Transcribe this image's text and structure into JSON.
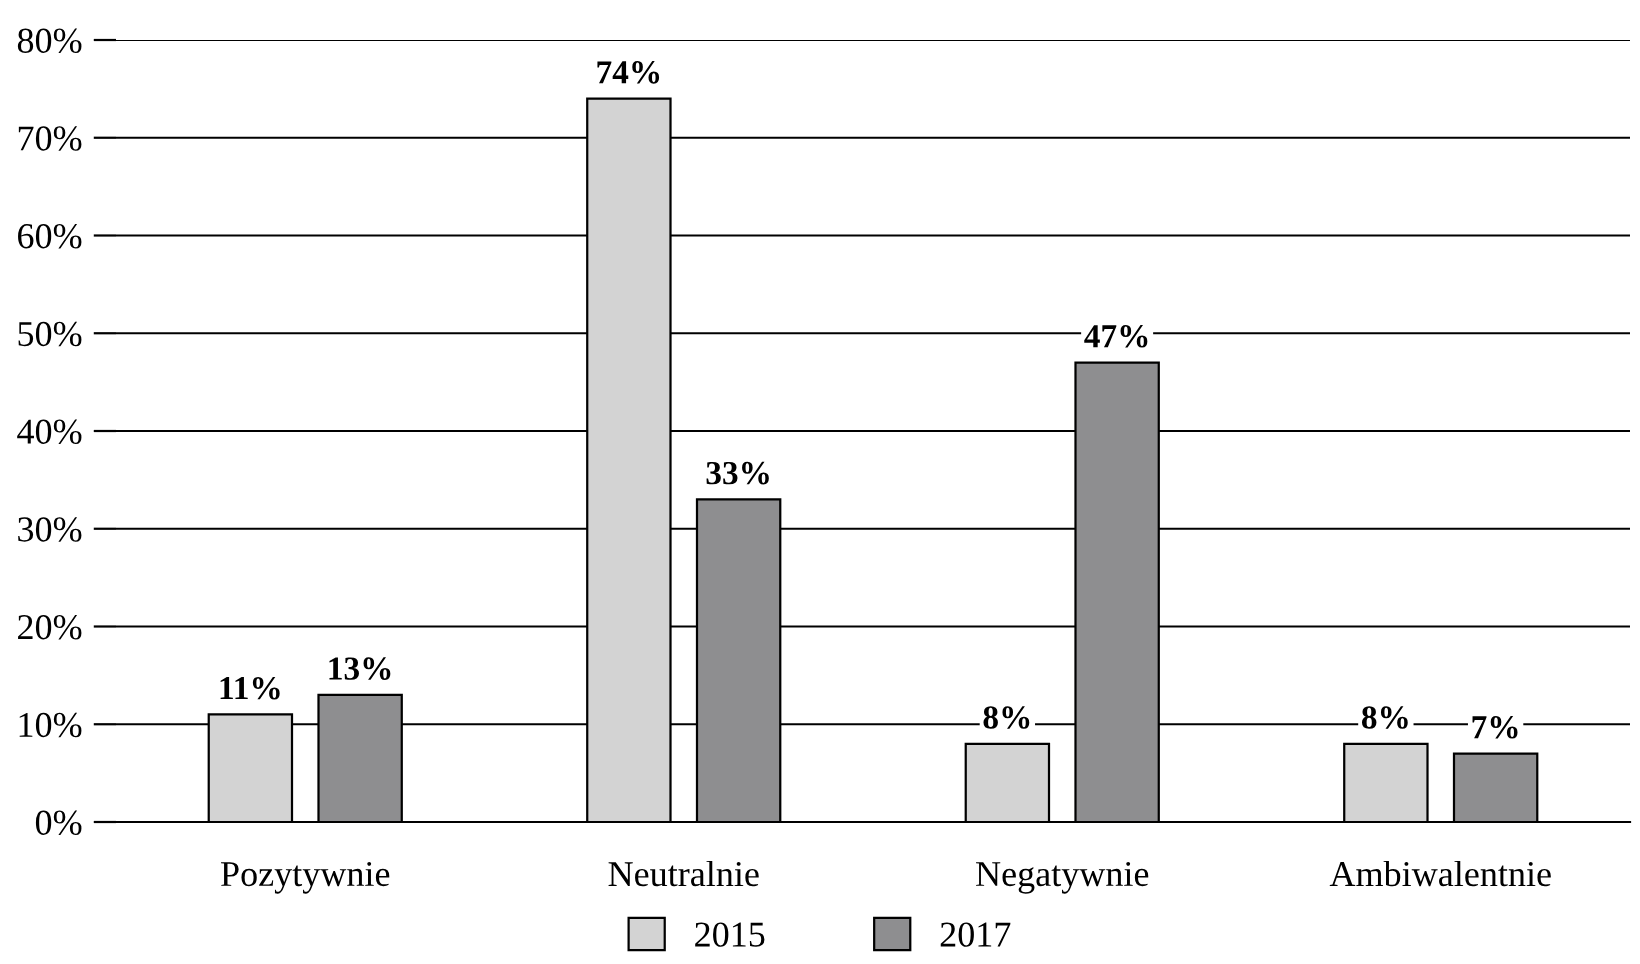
{
  "chart_data": {
    "type": "bar",
    "categories": [
      "Pozytywnie",
      "Neutralnie",
      "Negatywnie",
      "Ambiwalentnie"
    ],
    "series": [
      {
        "name": "2015",
        "color": "#d3d3d3",
        "values": [
          11,
          74,
          8,
          8
        ],
        "value_labels": [
          "11%",
          "74%",
          "8%",
          "8%"
        ]
      },
      {
        "name": "2017",
        "color": "#8e8e90",
        "values": [
          13,
          33,
          47,
          7
        ],
        "value_labels": [
          "13%",
          "33%",
          "47%",
          "7%"
        ]
      }
    ],
    "ylim": [
      0,
      80
    ],
    "yticks": [
      {
        "value": 0,
        "label": "0%"
      },
      {
        "value": 10,
        "label": "10%"
      },
      {
        "value": 20,
        "label": "20%"
      },
      {
        "value": 30,
        "label": "30%"
      },
      {
        "value": 40,
        "label": "40%"
      },
      {
        "value": 50,
        "label": "50%"
      },
      {
        "value": 60,
        "label": "60%"
      },
      {
        "value": 70,
        "label": "70%"
      },
      {
        "value": 80,
        "label": "80%"
      }
    ],
    "grid": "y",
    "legend": "bottom"
  }
}
